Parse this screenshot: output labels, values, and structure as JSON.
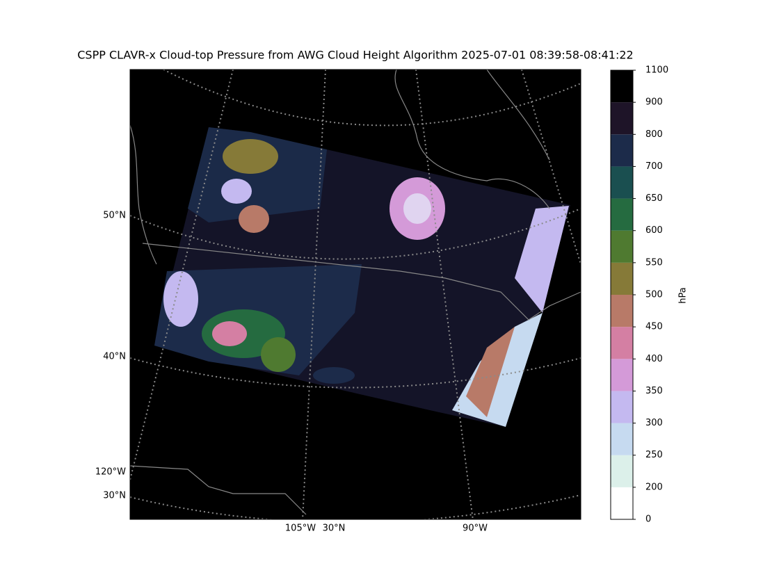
{
  "map": {
    "title": "CSPP CLAVR-x Cloud-top Pressure from AWG Cloud Height Algorithm 2025-07-01 08:39:58-08:41:22",
    "labels": [
      "50°N",
      "40°N",
      "120°W",
      "30°N",
      "105°W",
      "30°N",
      "90°W"
    ],
    "colorbar": {
      "label": "hPa",
      "boundaries": [
        0,
        200,
        250,
        300,
        350,
        400,
        450,
        500,
        550,
        600,
        650,
        700,
        800,
        900,
        1100
      ],
      "colors": [
        "#ffffff",
        "#dcf0ea",
        "#c6daf0",
        "#c4b9f0",
        "#d49ad8",
        "#d47fa3",
        "#b87a68",
        "#867a38",
        "#4f7a30",
        "#256b40",
        "#1a4f50",
        "#1c2b4a",
        "#1e1428",
        "#000000"
      ]
    }
  }
}
